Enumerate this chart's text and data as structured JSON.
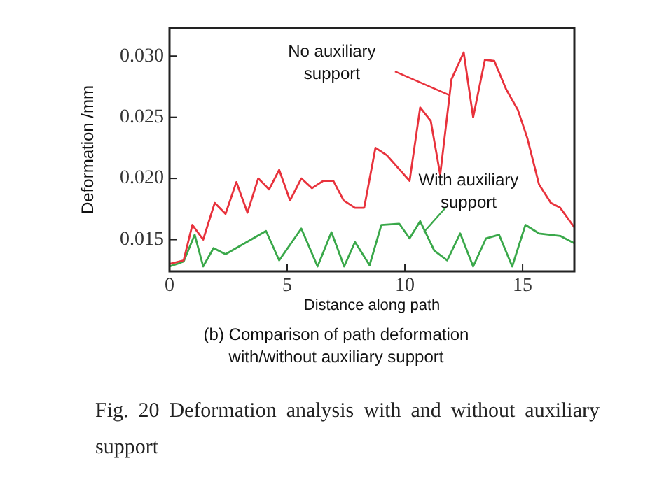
{
  "chart_data": {
    "type": "line",
    "xlabel": "Distance along path",
    "ylabel": "Deformation /mm",
    "xlim": [
      0,
      17.2
    ],
    "ylim": [
      0.0124,
      0.0323
    ],
    "xticks": [
      0,
      5,
      10,
      15
    ],
    "yticks": [
      {
        "value": 0.015,
        "label": "0.015"
      },
      {
        "value": 0.02,
        "label": "0.020"
      },
      {
        "value": 0.025,
        "label": "0.025"
      },
      {
        "value": 0.03,
        "label": "0.030"
      }
    ],
    "grid": false,
    "legend": false,
    "marker": "none",
    "line_style": "solid",
    "series": [
      {
        "color": "#e8323c",
        "x": [
          0,
          0.6,
          0.97,
          1.43,
          1.92,
          2.38,
          2.84,
          3.31,
          3.77,
          4.23,
          4.66,
          5.12,
          5.6,
          6.05,
          6.53,
          6.96,
          7.4,
          7.88,
          8.27,
          8.75,
          9.23,
          10.2,
          10.65,
          11.1,
          11.5,
          11.98,
          12.5,
          12.9,
          13.4,
          13.8,
          14.3,
          14.8,
          15.2,
          15.7,
          16.2,
          16.6,
          17.2
        ],
        "values": [
          0.013,
          0.0133,
          0.0162,
          0.015,
          0.018,
          0.0171,
          0.0197,
          0.0172,
          0.02,
          0.0191,
          0.0207,
          0.0182,
          0.02,
          0.0192,
          0.0198,
          0.0198,
          0.0182,
          0.0176,
          0.0176,
          0.0225,
          0.0219,
          0.0198,
          0.0258,
          0.0247,
          0.0203,
          0.0281,
          0.0303,
          0.025,
          0.0297,
          0.0296,
          0.0273,
          0.0256,
          0.0233,
          0.0195,
          0.018,
          0.0176,
          0.016
        ]
      },
      {
        "color": "#3aa84a",
        "x": [
          0,
          0.6,
          1.07,
          1.43,
          1.87,
          2.38,
          4.1,
          4.66,
          5.6,
          6.29,
          6.88,
          7.42,
          7.88,
          8.5,
          9.0,
          9.76,
          10.2,
          10.65,
          11.25,
          11.8,
          12.35,
          12.9,
          13.45,
          14.0,
          14.56,
          15.12,
          15.7,
          16.6,
          17.2
        ],
        "values": [
          0.0128,
          0.0132,
          0.0154,
          0.0128,
          0.0143,
          0.0138,
          0.0157,
          0.0133,
          0.0159,
          0.0128,
          0.0156,
          0.0128,
          0.0148,
          0.0129,
          0.0162,
          0.0163,
          0.0151,
          0.0165,
          0.0141,
          0.0133,
          0.0155,
          0.0128,
          0.0151,
          0.0154,
          0.0128,
          0.0162,
          0.0155,
          0.0153,
          0.0147
        ]
      }
    ],
    "annotations": [
      {
        "text": "No auxiliary support",
        "x": 11.9,
        "y": 0.0268
      },
      {
        "text": "With auxiliary support",
        "x": 10.8,
        "y": 0.0156
      },
      "(b) Comparison of path deformation with/without auxiliary support",
      "Fig. 20   Deformation analysis with and without auxiliary support"
    ]
  }
}
